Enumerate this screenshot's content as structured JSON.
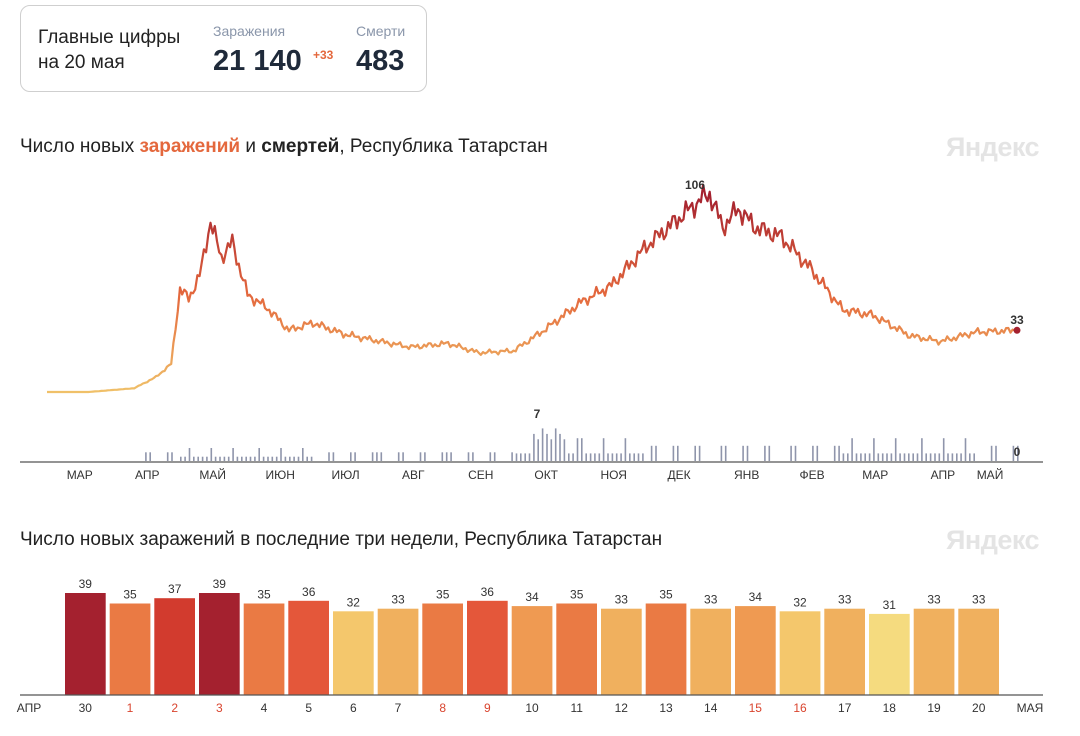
{
  "summary": {
    "title_line1": "Главные цифры",
    "title_line2": "на 20 мая",
    "infections_label": "Заражения",
    "infections_value": "21 140",
    "infections_delta": "+33",
    "deaths_label": "Смерти",
    "deaths_value": "483"
  },
  "watermark": "Яндекс",
  "chart1": {
    "title_pre": "Число новых ",
    "title_infections": "заражений",
    "title_mid": " и ",
    "title_deaths": "смертей",
    "title_post": ", Республика Татарстан",
    "month_labels": [
      "МАР",
      "АПР",
      "МАЙ",
      "ИЮН",
      "ИЮЛ",
      "АВГ",
      "СЕН",
      "ОКТ",
      "НОЯ",
      "ДЕК",
      "ЯНВ",
      "ФЕВ",
      "МАР",
      "АПР",
      "МАЙ"
    ],
    "peak_label": "106",
    "last_label": "33",
    "deaths_peak_label": "7",
    "deaths_last_label": "0"
  },
  "chart2": {
    "title": "Число новых заражений в последние три недели, Республика Татарстан",
    "start_month": "АПР",
    "end_month": "МАЯ"
  },
  "colors": {
    "line_low": "#f0c36a",
    "line_mid": "#e4683d",
    "line_high": "#a4212f",
    "deaths_bars": "#8f95ab",
    "holiday_text": "#d9442e"
  },
  "chart_data": [
    {
      "type": "line",
      "title": "Число новых заражений и смертей, Республика Татарстан",
      "x_range": [
        "2020-03",
        "2021-05-20"
      ],
      "series": [
        {
          "name": "заражений",
          "points": [
            [
              "2020-03-20",
              0
            ],
            [
              "2020-04-10",
              2
            ],
            [
              "2020-04-20",
              8
            ],
            [
              "2020-04-27",
              15
            ],
            [
              "2020-05-01",
              55
            ],
            [
              "2020-05-05",
              50
            ],
            [
              "2020-05-10",
              62
            ],
            [
              "2020-05-15",
              91
            ],
            [
              "2020-05-20",
              72
            ],
            [
              "2020-05-25",
              80
            ],
            [
              "2020-06-01",
              52
            ],
            [
              "2020-06-10",
              45
            ],
            [
              "2020-06-20",
              33
            ],
            [
              "2020-07-01",
              37
            ],
            [
              "2020-07-15",
              31
            ],
            [
              "2020-08-01",
              27
            ],
            [
              "2020-08-15",
              24
            ],
            [
              "2020-09-01",
              26
            ],
            [
              "2020-09-15",
              21
            ],
            [
              "2020-10-01",
              22
            ],
            [
              "2020-10-15",
              33
            ],
            [
              "2020-11-01",
              48
            ],
            [
              "2020-11-15",
              57
            ],
            [
              "2020-12-01",
              78
            ],
            [
              "2020-12-15",
              92
            ],
            [
              "2020-12-27",
              104
            ],
            [
              "2020-12-30",
              106
            ],
            [
              "2021-01-05",
              88
            ],
            [
              "2021-01-12",
              98
            ],
            [
              "2021-01-20",
              88
            ],
            [
              "2021-02-01",
              83
            ],
            [
              "2021-02-15",
              65
            ],
            [
              "2021-03-01",
              44
            ],
            [
              "2021-03-15",
              41
            ],
            [
              "2021-04-01",
              30
            ],
            [
              "2021-04-15",
              27
            ],
            [
              "2021-05-01",
              32
            ],
            [
              "2021-05-20",
              33
            ]
          ]
        },
        {
          "name": "смертей",
          "type": "bar",
          "peak": {
            "date": "2020-10-20",
            "value": 7
          },
          "last": {
            "date": "2021-05-20",
            "value": 0
          }
        }
      ],
      "annotations": [
        {
          "label": "106",
          "date": "2020-12-30",
          "value": 106
        },
        {
          "label": "33",
          "date": "2021-05-20",
          "value": 33
        },
        {
          "label": "7",
          "date": "2020-10-20",
          "value": 7
        },
        {
          "label": "0",
          "date": "2021-05-20",
          "value": 0
        }
      ]
    },
    {
      "type": "bar",
      "title": "Число новых заражений в последние три недели, Республика Татарстан",
      "categories": [
        "30",
        "1",
        "2",
        "3",
        "4",
        "5",
        "6",
        "7",
        "8",
        "9",
        "10",
        "11",
        "12",
        "13",
        "14",
        "15",
        "16",
        "17",
        "18",
        "19",
        "20"
      ],
      "values": [
        39,
        35,
        37,
        39,
        35,
        36,
        32,
        33,
        35,
        36,
        34,
        35,
        33,
        35,
        33,
        34,
        32,
        33,
        31,
        33,
        33
      ],
      "holidays": [
        "1",
        "2",
        "3",
        "8",
        "9",
        "15",
        "16"
      ],
      "ylim": [
        0,
        39
      ]
    }
  ]
}
